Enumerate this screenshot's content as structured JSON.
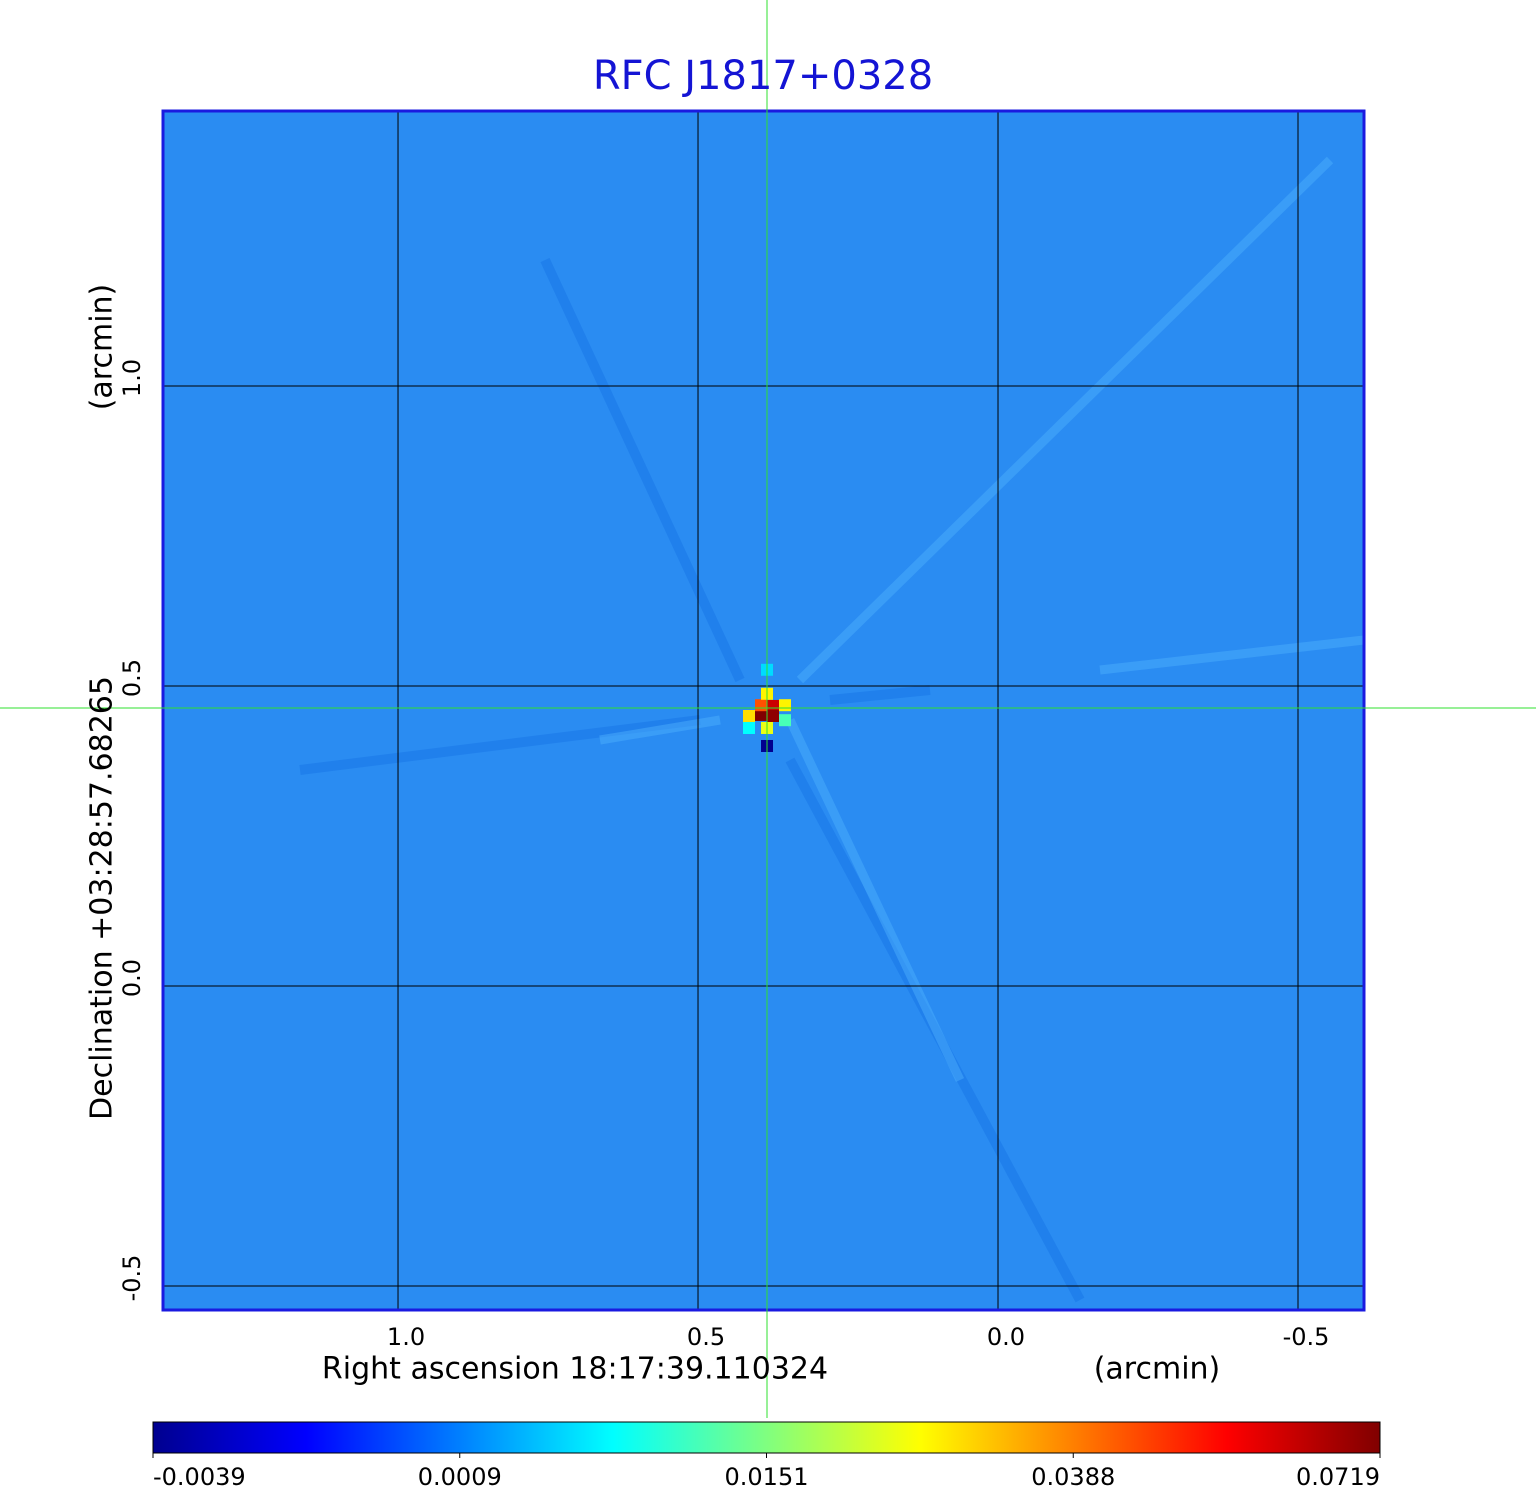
{
  "chart_data": {
    "type": "image",
    "title": "RFC J1817+0328",
    "x_label": "Right ascension  18:17:39.110324",
    "x_unit": "(arcmin)",
    "y_label": "Declination  +03:28:57.68265",
    "y_unit": "(arcmin)",
    "xlim": [
      1.3917,
      -0.61
    ],
    "ylim": [
      -0.54,
      1.4583
    ],
    "xticks": [
      {
        "value": 1,
        "label": "1.0"
      },
      0.5,
      {
        "value": 0,
        "label": "0.0"
      },
      -0.5
    ],
    "yticks": [
      -0.5,
      {
        "value": 0,
        "label": "0.0"
      },
      0.5,
      {
        "value": 1,
        "label": "1.0"
      }
    ],
    "grid": true,
    "colorbar_ticks": [
      -0.0039,
      0.0009,
      0.0151,
      0.0388,
      0.0719
    ],
    "pixels": [
      {
        "x": 0.395,
        "y": 0.4517,
        "value": 0.0719
      },
      {
        "x": 0.375,
        "y": 0.4667,
        "value": 0.062
      },
      {
        "x": 0.375,
        "y": 0.45,
        "value": 0.07
      },
      {
        "x": 0.395,
        "y": 0.468,
        "value": 0.045
      },
      {
        "x": 0.415,
        "y": 0.45,
        "value": 0.03
      },
      {
        "x": 0.355,
        "y": 0.468,
        "value": 0.028
      },
      {
        "x": 0.385,
        "y": 0.487,
        "value": 0.028
      },
      {
        "x": 0.415,
        "y": 0.43,
        "value": 0.008
      },
      {
        "x": 0.385,
        "y": 0.43,
        "value": 0.025
      },
      {
        "x": 0.355,
        "y": 0.443,
        "value": 0.012
      },
      {
        "x": 0.385,
        "y": 0.4,
        "value": -0.0039
      },
      {
        "x": 0.385,
        "y": 0.527,
        "value": 0.006
      }
    ]
  }
}
